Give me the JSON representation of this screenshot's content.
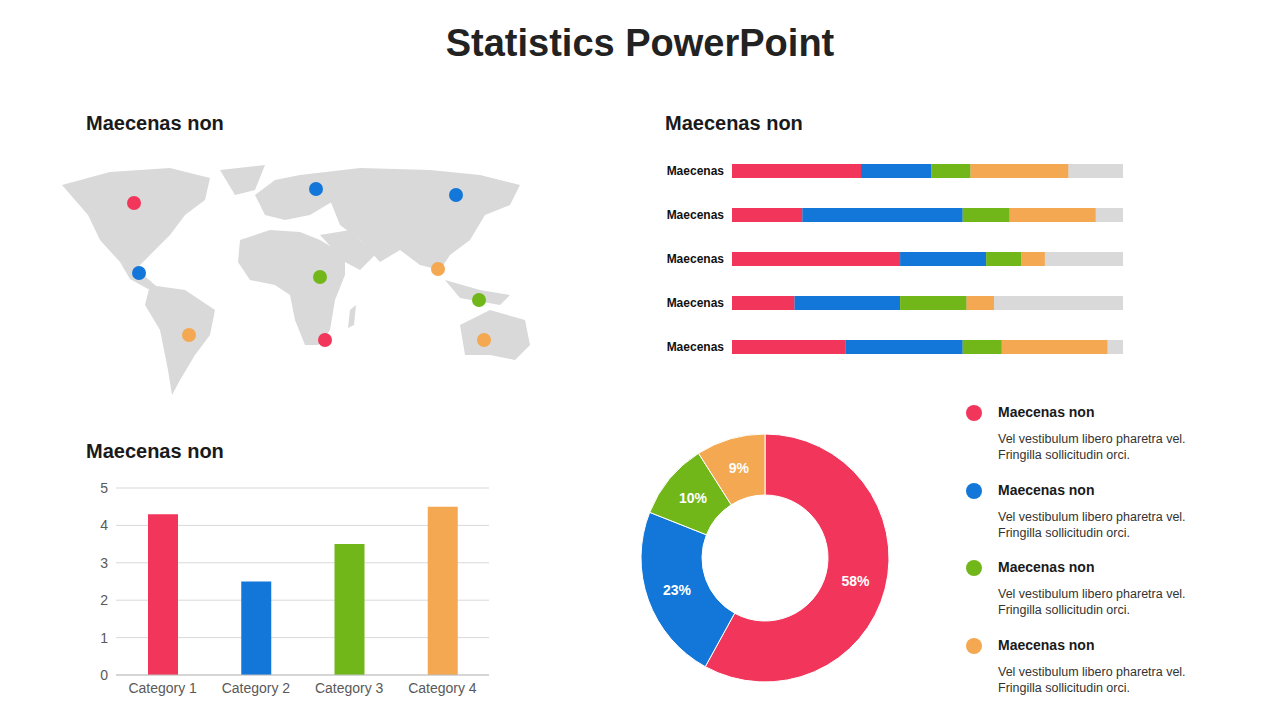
{
  "title": "Statistics PowerPoint",
  "chart_data": [
    {
      "type": "map",
      "title": "Maecenas non",
      "colors": [
        "#f2365b",
        "#1277d9",
        "#f3a851",
        "#1277d9",
        "#72b71a",
        "#f2365b",
        "#1277d9",
        "#f3a851",
        "#72b71a",
        "#f3a851"
      ]
    },
    {
      "type": "bar",
      "title": "Maecenas non",
      "orientation": "horizontal",
      "stacked": true,
      "categories": [
        "Maecenas",
        "Maecenas",
        "Maecenas",
        "Maecenas",
        "Maecenas"
      ],
      "series": [
        {
          "color": "#f2365b",
          "values": [
            33,
            18,
            43,
            16,
            29
          ]
        },
        {
          "color": "#1277d9",
          "values": [
            18,
            41,
            22,
            27,
            30
          ]
        },
        {
          "color": "#72b71a",
          "values": [
            10,
            12,
            9,
            17,
            10
          ]
        },
        {
          "color": "#f3a851",
          "values": [
            25,
            22,
            6,
            7,
            27
          ]
        }
      ],
      "xlim": [
        0,
        100
      ],
      "tick_labels": "y"
    },
    {
      "type": "bar",
      "title": "Maecenas non",
      "categories": [
        "Category 1",
        "Category 2",
        "Category 3",
        "Category 4"
      ],
      "values": [
        4.3,
        2.5,
        3.5,
        4.5
      ],
      "colors": [
        "#f2365b",
        "#1277d9",
        "#72b71a",
        "#f3a851"
      ],
      "ylim": [
        0,
        5
      ],
      "yticks": [
        0,
        1,
        2,
        3,
        4,
        5
      ],
      "grid": true
    },
    {
      "type": "pie",
      "categories": [
        "Maecenas non",
        "Maecenas non",
        "Maecenas non",
        "Maecenas non"
      ],
      "descriptions": [
        "Vel vestibulum libero pharetra vel. Fringilla sollicitudin orci.",
        "Vel vestibulum libero pharetra vel. Fringilla sollicitudin orci.",
        "Vel vestibulum libero pharetra vel. Fringilla sollicitudin orci.",
        "Vel vestibulum libero pharetra vel. Fringilla sollicitudin orci."
      ],
      "values": [
        58,
        23,
        10,
        9
      ],
      "value_labels": [
        "58%",
        "23%",
        "10%",
        "9%"
      ],
      "colors": [
        "#f2365b",
        "#1277d9",
        "#72b71a",
        "#f3a851"
      ],
      "data_labels": true,
      "legend": "right"
    }
  ]
}
